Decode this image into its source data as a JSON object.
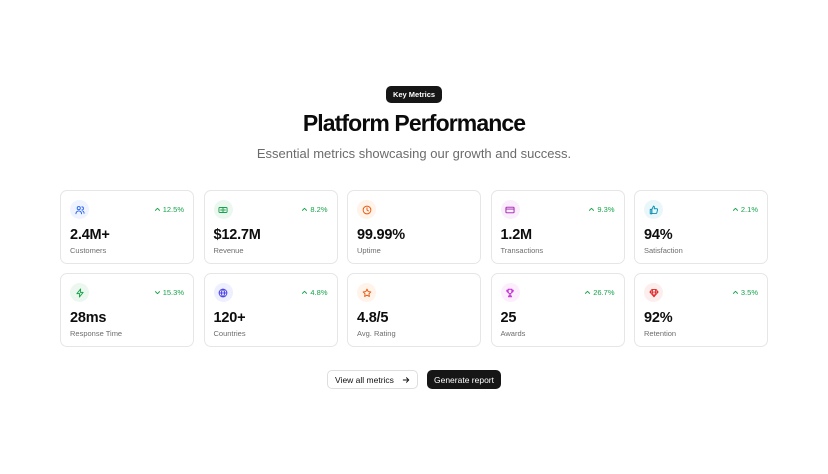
{
  "header": {
    "badge": "Key Metrics",
    "title": "Platform Performance",
    "subtitle": "Essential metrics showcasing our growth and success."
  },
  "metrics": [
    {
      "value": "2.4M+",
      "label": "Customers",
      "change": "12.5%",
      "trend": "up",
      "icon": "users-icon",
      "icon_color": "#2563eb",
      "icon_bg": "#eef3ff"
    },
    {
      "value": "$12.7M",
      "label": "Revenue",
      "change": "8.2%",
      "trend": "up",
      "icon": "banknote-icon",
      "icon_color": "#16a34a",
      "icon_bg": "#ecf8ef"
    },
    {
      "value": "99.99%",
      "label": "Uptime",
      "change": "",
      "trend": "",
      "icon": "clock-icon",
      "icon_color": "#ea580c",
      "icon_bg": "#fff3ea"
    },
    {
      "value": "1.2M",
      "label": "Transactions",
      "change": "9.3%",
      "trend": "up",
      "icon": "credit-card-icon",
      "icon_color": "#a21caf",
      "icon_bg": "#faeefc"
    },
    {
      "value": "94%",
      "label": "Satisfaction",
      "change": "2.1%",
      "trend": "up",
      "icon": "thumbs-up-icon",
      "icon_color": "#0891b2",
      "icon_bg": "#eaf7fa"
    },
    {
      "value": "28ms",
      "label": "Response Time",
      "change": "15.3%",
      "trend": "down",
      "icon": "zap-icon",
      "icon_color": "#16a34a",
      "icon_bg": "#ecf8ef"
    },
    {
      "value": "120+",
      "label": "Countries",
      "change": "4.8%",
      "trend": "up",
      "icon": "globe-icon",
      "icon_color": "#4f46e5",
      "icon_bg": "#eeefff"
    },
    {
      "value": "4.8/5",
      "label": "Avg. Rating",
      "change": "",
      "trend": "",
      "icon": "star-icon",
      "icon_color": "#ea580c",
      "icon_bg": "#fff3ea"
    },
    {
      "value": "25",
      "label": "Awards",
      "change": "26.7%",
      "trend": "up",
      "icon": "trophy-icon",
      "icon_color": "#c026d3",
      "icon_bg": "#fceefc"
    },
    {
      "value": "92%",
      "label": "Retention",
      "change": "3.5%",
      "trend": "up",
      "icon": "gem-icon",
      "icon_color": "#dc2626",
      "icon_bg": "#fdeeee"
    }
  ],
  "actions": {
    "view_all": "View all metrics",
    "generate": "Generate report"
  },
  "colors": {
    "positive": "#16a34a",
    "dark": "#161616"
  }
}
